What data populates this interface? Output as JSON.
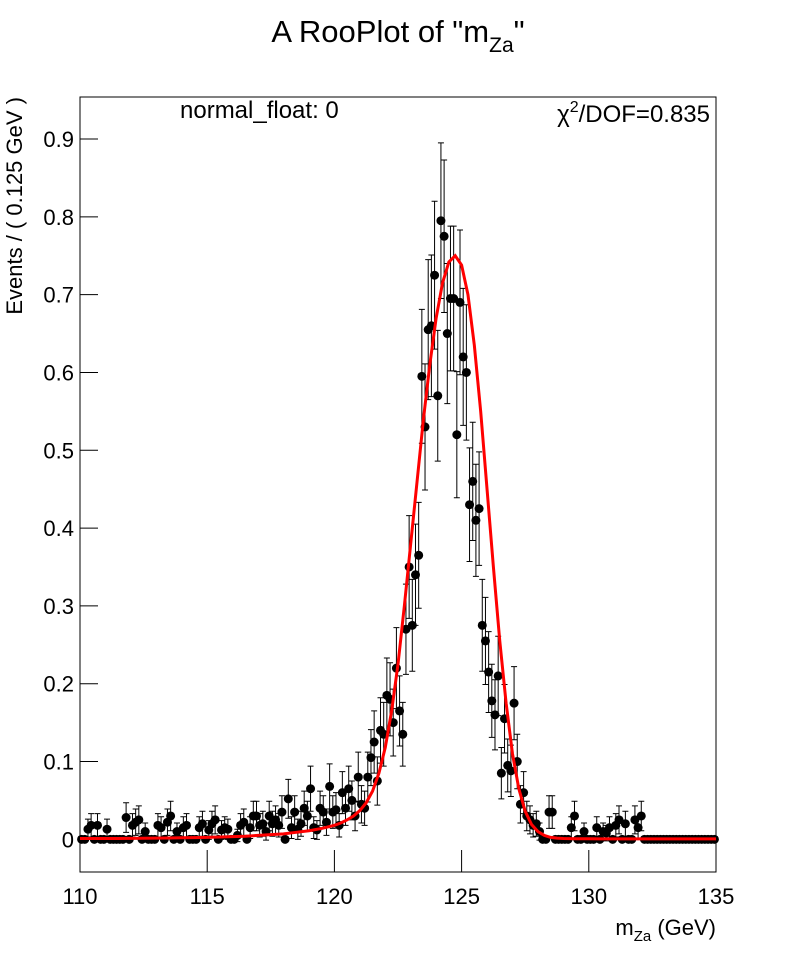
{
  "chart_data": {
    "type": "scatter",
    "title": {
      "before": "A RooPlot of \"m",
      "sub": "Za",
      "after": "\""
    },
    "x_label": {
      "before": "m",
      "sub": "Za",
      "after": " (GeV)"
    },
    "y_label": "Events / ( 0.125 GeV )",
    "annotations": {
      "left": "normal_float: 0",
      "chi_symbol": "χ",
      "chi_sup": "2",
      "chi_rest": "/DOF=0.835"
    },
    "xlim": [
      110,
      135
    ],
    "xticks": [
      110,
      115,
      120,
      125,
      130,
      135
    ],
    "ylim": [
      -0.042,
      0.954
    ],
    "yticks": [
      0,
      0.1,
      0.2,
      0.3,
      0.4,
      0.5,
      0.6,
      0.7,
      0.8,
      0.9
    ],
    "data": {
      "color": "#000000",
      "x": [
        110.0625,
        110.1875,
        110.3125,
        110.4375,
        110.5625,
        110.6875,
        110.8125,
        110.9375,
        111.0625,
        111.1875,
        111.3125,
        111.4375,
        111.5625,
        111.6875,
        111.8125,
        111.9375,
        112.0625,
        112.1875,
        112.3125,
        112.4375,
        112.5625,
        112.6875,
        112.8125,
        112.9375,
        113.0625,
        113.1875,
        113.3125,
        113.4375,
        113.5625,
        113.6875,
        113.8125,
        113.9375,
        114.0625,
        114.1875,
        114.3125,
        114.4375,
        114.5625,
        114.6875,
        114.8125,
        114.9375,
        115.0625,
        115.1875,
        115.3125,
        115.4375,
        115.5625,
        115.6875,
        115.8125,
        115.9375,
        116.0625,
        116.1875,
        116.3125,
        116.4375,
        116.5625,
        116.6875,
        116.8125,
        116.9375,
        117.0625,
        117.1875,
        117.3125,
        117.4375,
        117.5625,
        117.6875,
        117.8125,
        117.9375,
        118.0625,
        118.1875,
        118.3125,
        118.4375,
        118.5625,
        118.6875,
        118.8125,
        118.9375,
        119.0625,
        119.1875,
        119.3125,
        119.4375,
        119.5625,
        119.6875,
        119.8125,
        119.9375,
        120.0625,
        120.1875,
        120.3125,
        120.4375,
        120.5625,
        120.6875,
        120.8125,
        120.9375,
        121.0625,
        121.1875,
        121.3125,
        121.4375,
        121.5625,
        121.6875,
        121.8125,
        121.9375,
        122.0625,
        122.1875,
        122.3125,
        122.4375,
        122.5625,
        122.6875,
        122.8125,
        122.9375,
        123.0625,
        123.1875,
        123.3125,
        123.4375,
        123.5625,
        123.6875,
        123.8125,
        123.9375,
        124.0625,
        124.1875,
        124.3125,
        124.4375,
        124.5625,
        124.6875,
        124.8125,
        124.9375,
        125.0625,
        125.1875,
        125.3125,
        125.4375,
        125.5625,
        125.6875,
        125.8125,
        125.9375,
        126.0625,
        126.1875,
        126.3125,
        126.4375,
        126.5625,
        126.6875,
        126.8125,
        126.9375,
        127.0625,
        127.1875,
        127.3125,
        127.4375,
        127.5625,
        127.6875,
        127.8125,
        127.9375,
        128.0625,
        128.1875,
        128.3125,
        128.4375,
        128.5625,
        128.6875,
        128.8125,
        128.9375,
        129.0625,
        129.1875,
        129.3125,
        129.4375,
        129.5625,
        129.6875,
        129.8125,
        129.9375,
        130.0625,
        130.1875,
        130.3125,
        130.4375,
        130.5625,
        130.6875,
        130.8125,
        130.9375,
        131.0625,
        131.1875,
        131.3125,
        131.4375,
        131.5625,
        131.6875,
        131.8125,
        131.9375,
        132.0625,
        132.1875,
        132.3125,
        132.4375,
        132.5625,
        132.6875,
        132.8125,
        132.9375,
        133.0625,
        133.1875,
        133.3125,
        133.4375,
        133.5625,
        133.6875,
        133.8125,
        133.9375,
        134.0625,
        134.1875,
        134.3125,
        134.4375,
        134.5625,
        134.6875,
        134.8125,
        134.9375
      ],
      "values": [
        0,
        0,
        0.013,
        0.018,
        0,
        0.018,
        0,
        0,
        0.013,
        0,
        0,
        0,
        0,
        0,
        0.028,
        0,
        0.018,
        0.022,
        0.025,
        0,
        0.01,
        0,
        0,
        0,
        0.018,
        0.015,
        0,
        0.022,
        0.03,
        0,
        0.01,
        0,
        0.015,
        0.018,
        0,
        0,
        0,
        0.015,
        0.02,
        0,
        0.012,
        0.02,
        0.025,
        0,
        0.012,
        0.015,
        0.013,
        0,
        0,
        0.005,
        0.018,
        0.022,
        0,
        0.015,
        0.03,
        0.03,
        0.018,
        0.02,
        0.01,
        0.03,
        0.02,
        0.025,
        0.018,
        0.035,
        0,
        0.052,
        0.015,
        0.035,
        0.013,
        0.02,
        0.04,
        0.03,
        0.065,
        0.015,
        0.012,
        0.04,
        0.035,
        0.022,
        0.068,
        0.035,
        0.038,
        0.018,
        0.06,
        0.04,
        0.065,
        0.05,
        0.03,
        0.08,
        0.045,
        0.04,
        0.08,
        0.105,
        0.125,
        0.075,
        0.14,
        0.135,
        0.185,
        0.18,
        0.15,
        0.22,
        0.165,
        0.135,
        0.27,
        0.35,
        0.275,
        0.34,
        0.365,
        0.595,
        0.53,
        0.655,
        0.66,
        0.725,
        0.57,
        0.795,
        0.775,
        0.65,
        0.695,
        0.695,
        0.52,
        0.69,
        0.62,
        0.6,
        0.43,
        0.46,
        0.41,
        0.425,
        0.275,
        0.255,
        0.215,
        0.178,
        0.16,
        0.21,
        0.085,
        0.155,
        0.095,
        0.088,
        0.175,
        0.1,
        0.045,
        0.06,
        0.03,
        0.025,
        0.018,
        0.02,
        0.01,
        0,
        0,
        0.035,
        0.035,
        0,
        0,
        0,
        0,
        0,
        0.015,
        0.03,
        0,
        0,
        0.01,
        0,
        0,
        0,
        0.015,
        0,
        0.01,
        0.008,
        0.015,
        0,
        0.018,
        0.025,
        0,
        0.02,
        0,
        0,
        0.025,
        0.015,
        0.03,
        0,
        0,
        0,
        0,
        0,
        0,
        0,
        0,
        0,
        0,
        0,
        0,
        0,
        0,
        0,
        0,
        0,
        0,
        0,
        0,
        0,
        0,
        0
      ],
      "errors": [
        0,
        0,
        0.013,
        0.015,
        0,
        0.015,
        0,
        0,
        0.013,
        0,
        0,
        0,
        0,
        0,
        0.019,
        0,
        0.015,
        0.017,
        0.018,
        0,
        0.011,
        0,
        0,
        0,
        0.015,
        0.014,
        0,
        0.017,
        0.019,
        0,
        0.011,
        0,
        0.014,
        0.015,
        0,
        0,
        0,
        0.014,
        0.016,
        0,
        0.012,
        0.016,
        0.018,
        0,
        0.012,
        0.014,
        0.013,
        0,
        0,
        0.008,
        0.015,
        0.017,
        0,
        0.014,
        0.019,
        0.019,
        0.015,
        0.016,
        0.011,
        0.019,
        0.016,
        0.018,
        0.015,
        0.021,
        0,
        0.025,
        0.014,
        0.021,
        0.013,
        0.016,
        0.022,
        0.019,
        0.029,
        0.014,
        0.012,
        0.022,
        0.021,
        0.017,
        0.029,
        0.021,
        0.022,
        0.015,
        0.027,
        0.022,
        0.029,
        0.025,
        0.019,
        0.032,
        0.024,
        0.022,
        0.032,
        0.036,
        0.04,
        0.031,
        0.042,
        0.041,
        0.048,
        0.047,
        0.043,
        0.052,
        0.045,
        0.041,
        0.058,
        0.066,
        0.059,
        0.065,
        0.068,
        0.086,
        0.081,
        0.09,
        0.091,
        0.095,
        0.084,
        0.1,
        0.098,
        0.09,
        0.093,
        0.093,
        0.081,
        0.093,
        0.088,
        0.087,
        0.073,
        0.076,
        0.072,
        0.073,
        0.059,
        0.056,
        0.052,
        0.047,
        0.045,
        0.051,
        0.033,
        0.044,
        0.034,
        0.033,
        0.047,
        0.035,
        0.024,
        0.027,
        0.019,
        0.018,
        0.015,
        0.016,
        0.011,
        0,
        0,
        0.021,
        0.021,
        0,
        0,
        0,
        0,
        0,
        0.014,
        0.019,
        0,
        0,
        0.011,
        0,
        0,
        0,
        0.014,
        0,
        0.011,
        0.01,
        0.014,
        0,
        0.015,
        0.018,
        0,
        0.016,
        0,
        0,
        0.018,
        0.014,
        0.019,
        0,
        0,
        0,
        0,
        0,
        0,
        0,
        0,
        0,
        0,
        0,
        0,
        0,
        0,
        0,
        0,
        0,
        0,
        0,
        0,
        0,
        0,
        0
      ]
    },
    "fit": {
      "color": "#ff0000",
      "x": [
        110,
        110.5,
        111,
        111.5,
        112,
        112.5,
        113,
        113.5,
        114,
        114.5,
        115,
        115.5,
        116,
        116.5,
        117,
        117.5,
        118,
        118.5,
        119,
        119.5,
        120,
        120.25,
        120.5,
        120.75,
        121,
        121.25,
        121.5,
        121.75,
        122,
        122.25,
        122.5,
        122.75,
        123,
        123.25,
        123.5,
        123.75,
        124,
        124.25,
        124.5,
        124.75,
        125,
        125.25,
        125.5,
        125.75,
        126,
        126.25,
        126.5,
        126.75,
        127,
        127.25,
        127.5,
        127.75,
        128,
        128.25,
        128.5,
        128.75,
        129,
        129.5,
        130,
        130.5,
        131,
        131.5,
        132,
        132.5,
        133,
        133.5,
        134,
        134.5,
        135
      ],
      "values": [
        0.001,
        0.001,
        0.001,
        0.001,
        0.0012,
        0.0013,
        0.0015,
        0.0017,
        0.002,
        0.0022,
        0.0025,
        0.003,
        0.0035,
        0.004,
        0.005,
        0.006,
        0.007,
        0.009,
        0.011,
        0.014,
        0.018,
        0.021,
        0.025,
        0.03,
        0.037,
        0.047,
        0.062,
        0.085,
        0.118,
        0.165,
        0.225,
        0.3,
        0.38,
        0.46,
        0.54,
        0.61,
        0.67,
        0.715,
        0.742,
        0.75,
        0.738,
        0.7,
        0.635,
        0.55,
        0.45,
        0.35,
        0.255,
        0.175,
        0.11,
        0.065,
        0.036,
        0.019,
        0.01,
        0.005,
        0.0025,
        0.0015,
        0.001,
        0.0008,
        0.0007,
        0.0006,
        0.0006,
        0.0005,
        0.0005,
        0.0005,
        0.0005,
        0.0005,
        0.0005,
        0.0005,
        0.0005
      ]
    }
  }
}
